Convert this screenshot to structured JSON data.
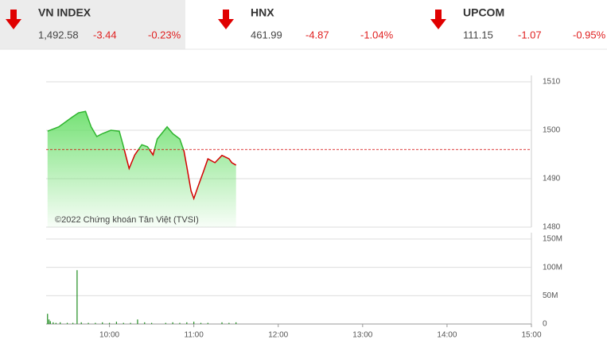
{
  "tickers": [
    {
      "name": "VN INDEX",
      "value": "1,492.58",
      "change": "-3.44",
      "percent": "-0.23%"
    },
    {
      "name": "HNX",
      "value": "461.99",
      "change": "-4.87",
      "percent": "-1.04%"
    },
    {
      "name": "UPCOM",
      "value": "111.15",
      "change": "-1.07",
      "percent": "-0.95%"
    }
  ],
  "chart_data": [
    {
      "type": "area",
      "annotation": "©2022 Chứng khoán Tân Việt (TVSI)",
      "x": [
        556,
        564,
        573,
        578,
        583,
        587,
        591,
        595,
        601,
        607,
        610,
        614,
        618,
        623,
        627,
        631,
        634,
        641,
        645,
        650,
        653,
        655,
        658,
        660,
        663,
        667,
        670,
        675,
        680,
        685,
        687,
        690
      ],
      "values": [
        1499.8,
        1500.7,
        1502.6,
        1503.6,
        1503.9,
        1500.7,
        1498.7,
        1499.3,
        1500,
        1499.8,
        1496.6,
        1492.1,
        1494.9,
        1497,
        1496.6,
        1494.9,
        1498.2,
        1500.7,
        1499.3,
        1498.2,
        1495.7,
        1492.5,
        1487.5,
        1485.9,
        1488.4,
        1491.6,
        1494.1,
        1493.3,
        1494.8,
        1494.1,
        1493.3,
        1492.8
      ],
      "reference": 1496.02,
      "up_color": "#2fb52f",
      "down_color": "#d40000",
      "fill_color": "#66dd66",
      "xlim": [
        555,
        900
      ],
      "ylim": [
        1480,
        1510
      ],
      "yticks": [
        1480,
        1490,
        1500,
        1510
      ],
      "grid": true
    },
    {
      "type": "bar",
      "x": [
        556,
        557,
        558,
        560,
        562,
        565,
        570,
        574,
        577,
        580,
        585,
        590,
        595,
        600,
        605,
        610,
        615,
        620,
        625,
        630,
        640,
        645,
        650,
        655,
        660,
        665,
        670,
        680,
        685,
        690
      ],
      "values": [
        18000000,
        8000000,
        5000000,
        3000000,
        2000000,
        3000000,
        2000000,
        2000000,
        95000000,
        3000000,
        2000000,
        2000000,
        3000000,
        2000000,
        4000000,
        2000000,
        2000000,
        8000000,
        3000000,
        2000000,
        2000000,
        3000000,
        2000000,
        3000000,
        4000000,
        2000000,
        2000000,
        3000000,
        2000000,
        3000000
      ],
      "color": "#1e8c1e",
      "xlim": [
        555,
        900
      ],
      "xticks": [
        {
          "value": 600,
          "label": "10:00"
        },
        {
          "value": 660,
          "label": "11:00"
        },
        {
          "value": 720,
          "label": "12:00"
        },
        {
          "value": 780,
          "label": "13:00"
        },
        {
          "value": 840,
          "label": "14:00"
        },
        {
          "value": 900,
          "label": "15:00"
        }
      ],
      "ylim": [
        0,
        150000000
      ],
      "yticks": [
        0,
        {
          "value": 50000000,
          "label": "50M"
        },
        {
          "value": 100000000,
          "label": "100M"
        },
        {
          "value": 150000000,
          "label": "150M"
        }
      ],
      "grid": true
    }
  ]
}
